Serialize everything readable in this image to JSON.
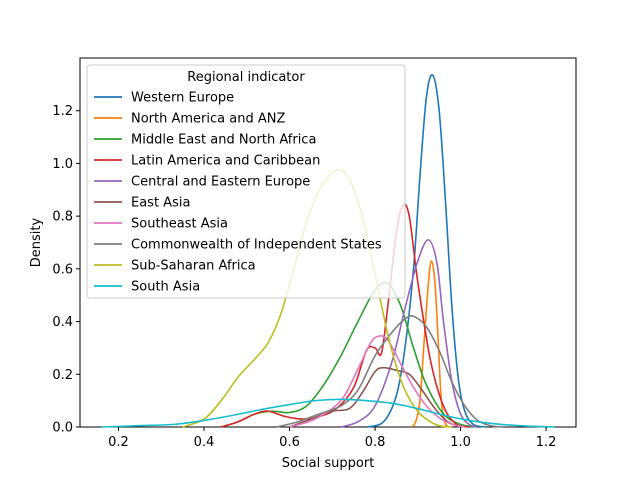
{
  "chart_data": {
    "type": "line",
    "title": "",
    "xlabel": "Social support",
    "ylabel": "Density",
    "xlim": [
      0.11,
      1.27
    ],
    "ylim": [
      0.0,
      1.4
    ],
    "xticks": [
      0.2,
      0.4,
      0.6,
      0.8,
      1.0,
      1.2
    ],
    "xtick_labels": [
      "0.2",
      "0.4",
      "0.6",
      "0.8",
      "1.0",
      "1.2"
    ],
    "yticks": [
      0.0,
      0.2,
      0.4,
      0.6,
      0.8,
      1.0,
      1.2
    ],
    "ytick_labels": [
      "0.0",
      "0.2",
      "0.4",
      "0.6",
      "0.8",
      "1.0",
      "1.2"
    ],
    "grid": false,
    "legend": {
      "title": "Regional indicator",
      "placement": "upper-left"
    },
    "series": [
      {
        "name": "Western Europe",
        "color": "#1f77b4",
        "points": [
          [
            0.78,
            0
          ],
          [
            0.82,
            0.02
          ],
          [
            0.85,
            0.12
          ],
          [
            0.87,
            0.3
          ],
          [
            0.89,
            0.6
          ],
          [
            0.905,
            0.95
          ],
          [
            0.92,
            1.25
          ],
          [
            0.935,
            1.335
          ],
          [
            0.95,
            1.2
          ],
          [
            0.965,
            0.85
          ],
          [
            0.98,
            0.45
          ],
          [
            0.995,
            0.18
          ],
          [
            1.01,
            0.06
          ],
          [
            1.03,
            0.01
          ],
          [
            1.06,
            0
          ]
        ]
      },
      {
        "name": "North America and ANZ",
        "color": "#ff7f0e",
        "points": [
          [
            0.885,
            0
          ],
          [
            0.895,
            0.02
          ],
          [
            0.905,
            0.1
          ],
          [
            0.915,
            0.33
          ],
          [
            0.925,
            0.55
          ],
          [
            0.932,
            0.63
          ],
          [
            0.94,
            0.55
          ],
          [
            0.948,
            0.32
          ],
          [
            0.955,
            0.1
          ],
          [
            0.965,
            0.01
          ],
          [
            0.975,
            0
          ]
        ]
      },
      {
        "name": "Middle East and North Africa",
        "color": "#2ca02c",
        "points": [
          [
            0.44,
            0
          ],
          [
            0.48,
            0.02
          ],
          [
            0.52,
            0.05
          ],
          [
            0.56,
            0.06
          ],
          [
            0.6,
            0.055
          ],
          [
            0.64,
            0.08
          ],
          [
            0.68,
            0.16
          ],
          [
            0.72,
            0.27
          ],
          [
            0.76,
            0.4
          ],
          [
            0.8,
            0.52
          ],
          [
            0.83,
            0.545
          ],
          [
            0.86,
            0.46
          ],
          [
            0.89,
            0.3
          ],
          [
            0.92,
            0.16
          ],
          [
            0.96,
            0.05
          ],
          [
            1.0,
            0.01
          ],
          [
            1.04,
            0
          ]
        ]
      },
      {
        "name": "Latin America and Caribbean",
        "color": "#d62728",
        "points": [
          [
            0.44,
            0
          ],
          [
            0.48,
            0.02
          ],
          [
            0.52,
            0.05
          ],
          [
            0.55,
            0.06
          ],
          [
            0.59,
            0.04
          ],
          [
            0.63,
            0.03
          ],
          [
            0.67,
            0.04
          ],
          [
            0.71,
            0.07
          ],
          [
            0.75,
            0.15
          ],
          [
            0.78,
            0.29
          ],
          [
            0.8,
            0.3
          ],
          [
            0.815,
            0.28
          ],
          [
            0.83,
            0.46
          ],
          [
            0.85,
            0.74
          ],
          [
            0.865,
            0.84
          ],
          [
            0.88,
            0.8
          ],
          [
            0.9,
            0.55
          ],
          [
            0.93,
            0.25
          ],
          [
            0.96,
            0.08
          ],
          [
            0.99,
            0.01
          ],
          [
            1.02,
            0
          ]
        ]
      },
      {
        "name": "Central and Eastern Europe",
        "color": "#9467bd",
        "points": [
          [
            0.72,
            0
          ],
          [
            0.76,
            0.02
          ],
          [
            0.8,
            0.08
          ],
          [
            0.84,
            0.25
          ],
          [
            0.87,
            0.45
          ],
          [
            0.9,
            0.63
          ],
          [
            0.925,
            0.71
          ],
          [
            0.945,
            0.62
          ],
          [
            0.96,
            0.4
          ],
          [
            0.98,
            0.17
          ],
          [
            1.0,
            0.05
          ],
          [
            1.02,
            0.01
          ],
          [
            1.04,
            0
          ]
        ]
      },
      {
        "name": "East Asia",
        "color": "#8c564b",
        "points": [
          [
            0.6,
            0
          ],
          [
            0.65,
            0.03
          ],
          [
            0.7,
            0.06
          ],
          [
            0.74,
            0.07
          ],
          [
            0.77,
            0.13
          ],
          [
            0.8,
            0.21
          ],
          [
            0.82,
            0.225
          ],
          [
            0.85,
            0.215
          ],
          [
            0.88,
            0.2
          ],
          [
            0.91,
            0.14
          ],
          [
            0.94,
            0.07
          ],
          [
            0.97,
            0.02
          ],
          [
            1.0,
            0
          ]
        ]
      },
      {
        "name": "Southeast Asia",
        "color": "#e377c2",
        "points": [
          [
            0.6,
            0
          ],
          [
            0.66,
            0.03
          ],
          [
            0.72,
            0.1
          ],
          [
            0.76,
            0.22
          ],
          [
            0.79,
            0.32
          ],
          [
            0.81,
            0.345
          ],
          [
            0.83,
            0.33
          ],
          [
            0.86,
            0.24
          ],
          [
            0.89,
            0.15
          ],
          [
            0.92,
            0.08
          ],
          [
            0.95,
            0.035
          ],
          [
            0.98,
            0.01
          ],
          [
            1.01,
            0
          ]
        ]
      },
      {
        "name": "Commonwealth of Independent States",
        "color": "#7f7f7f",
        "points": [
          [
            0.57,
            0
          ],
          [
            0.62,
            0.02
          ],
          [
            0.67,
            0.05
          ],
          [
            0.72,
            0.08
          ],
          [
            0.76,
            0.14
          ],
          [
            0.8,
            0.27
          ],
          [
            0.84,
            0.36
          ],
          [
            0.87,
            0.41
          ],
          [
            0.89,
            0.42
          ],
          [
            0.92,
            0.38
          ],
          [
            0.95,
            0.29
          ],
          [
            0.98,
            0.17
          ],
          [
            1.01,
            0.08
          ],
          [
            1.04,
            0.025
          ],
          [
            1.07,
            0.005
          ],
          [
            1.1,
            0
          ]
        ]
      },
      {
        "name": "Sub-Saharan Africa",
        "color": "#bcbd22",
        "points": [
          [
            0.35,
            0
          ],
          [
            0.4,
            0.03
          ],
          [
            0.44,
            0.1
          ],
          [
            0.48,
            0.19
          ],
          [
            0.52,
            0.26
          ],
          [
            0.55,
            0.32
          ],
          [
            0.58,
            0.43
          ],
          [
            0.61,
            0.6
          ],
          [
            0.64,
            0.78
          ],
          [
            0.67,
            0.9
          ],
          [
            0.7,
            0.965
          ],
          [
            0.72,
            0.975
          ],
          [
            0.74,
            0.94
          ],
          [
            0.77,
            0.8
          ],
          [
            0.8,
            0.58
          ],
          [
            0.83,
            0.35
          ],
          [
            0.86,
            0.18
          ],
          [
            0.89,
            0.08
          ],
          [
            0.92,
            0.03
          ],
          [
            0.95,
            0.005
          ],
          [
            0.98,
            0
          ]
        ]
      },
      {
        "name": "South Asia",
        "color": "#17becf",
        "points": [
          [
            0.16,
            0
          ],
          [
            0.25,
            0.005
          ],
          [
            0.33,
            0.01
          ],
          [
            0.4,
            0.025
          ],
          [
            0.47,
            0.045
          ],
          [
            0.53,
            0.065
          ],
          [
            0.6,
            0.085
          ],
          [
            0.66,
            0.1
          ],
          [
            0.72,
            0.105
          ],
          [
            0.78,
            0.1
          ],
          [
            0.84,
            0.09
          ],
          [
            0.9,
            0.07
          ],
          [
            0.96,
            0.045
          ],
          [
            1.02,
            0.025
          ],
          [
            1.08,
            0.012
          ],
          [
            1.15,
            0.004
          ],
          [
            1.22,
            0
          ]
        ]
      }
    ]
  }
}
